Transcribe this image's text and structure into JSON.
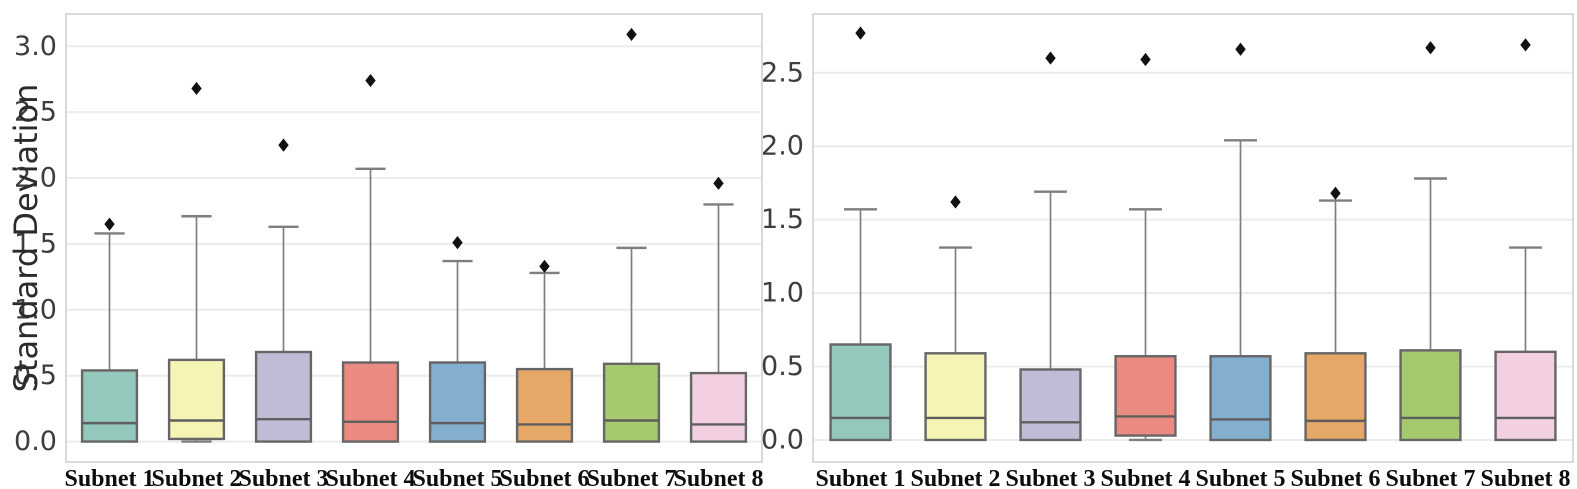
{
  "figure": {
    "background": "#ffffff",
    "grid_color": "#ececec",
    "spine_color": "#d6d6d6",
    "box_edge_color": "#666666",
    "median_color": "#5f5f5f",
    "whisker_color": "#7e7e7e",
    "outlier_color": "#111111",
    "tick_label_color": "#3d3d3d",
    "axis_label_color": "#2b2b2b",
    "palette": [
      "#94c8bc",
      "#f6f4b5",
      "#bfbcd6",
      "#e98b80",
      "#84aecd",
      "#e5a866",
      "#a5ca6e",
      "#f3cfe2"
    ]
  },
  "chart_data": [
    {
      "type": "box",
      "title": "",
      "xlabel": "",
      "ylabel": "Standard Deviation",
      "grid": true,
      "legend": "none",
      "ylim": [
        -0.155,
        3.245
      ],
      "yticks": [
        0.0,
        0.5,
        1.0,
        1.5,
        2.0,
        2.5,
        3.0
      ],
      "yticklabels": [
        "0.0",
        "0.5",
        "1.0",
        "1.5",
        "2.0",
        "2.5",
        "3.0"
      ],
      "categories": [
        "Subnet 1",
        "Subnet 2",
        "Subnet 3",
        "Subnet 4",
        "Subnet 5",
        "Subnet 6",
        "Subnet 7",
        "Subnet 8"
      ],
      "boxes": [
        {
          "label": "Subnet 1",
          "color": "#94c8bc",
          "q1": 0.0,
          "median": 0.14,
          "q3": 0.54,
          "whisker_low": 0.0,
          "whisker_high": 1.58,
          "outliers": [
            1.65
          ]
        },
        {
          "label": "Subnet 2",
          "color": "#f6f4b5",
          "q1": 0.02,
          "median": 0.16,
          "q3": 0.62,
          "whisker_low": 0.0,
          "whisker_high": 1.71,
          "outliers": [
            2.68
          ]
        },
        {
          "label": "Subnet 3",
          "color": "#bfbcd6",
          "q1": 0.0,
          "median": 0.17,
          "q3": 0.68,
          "whisker_low": 0.0,
          "whisker_high": 1.63,
          "outliers": [
            2.25
          ]
        },
        {
          "label": "Subnet 4",
          "color": "#e98b80",
          "q1": 0.0,
          "median": 0.15,
          "q3": 0.6,
          "whisker_low": 0.0,
          "whisker_high": 2.07,
          "outliers": [
            2.74
          ]
        },
        {
          "label": "Subnet 5",
          "color": "#84aecd",
          "q1": 0.0,
          "median": 0.14,
          "q3": 0.6,
          "whisker_low": 0.0,
          "whisker_high": 1.37,
          "outliers": [
            1.51
          ]
        },
        {
          "label": "Subnet 6",
          "color": "#e5a866",
          "q1": 0.0,
          "median": 0.13,
          "q3": 0.55,
          "whisker_low": 0.0,
          "whisker_high": 1.28,
          "outliers": [
            1.33
          ]
        },
        {
          "label": "Subnet 7",
          "color": "#a5ca6e",
          "q1": 0.0,
          "median": 0.16,
          "q3": 0.59,
          "whisker_low": 0.0,
          "whisker_high": 1.47,
          "outliers": [
            3.09
          ]
        },
        {
          "label": "Subnet 8",
          "color": "#f3cfe2",
          "q1": 0.0,
          "median": 0.13,
          "q3": 0.52,
          "whisker_low": 0.0,
          "whisker_high": 1.8,
          "outliers": [
            1.96
          ]
        }
      ]
    },
    {
      "type": "box",
      "title": "",
      "xlabel": "",
      "ylabel": "",
      "grid": true,
      "legend": "none",
      "ylim": [
        -0.15,
        2.9
      ],
      "yticks": [
        0.0,
        0.5,
        1.0,
        1.5,
        2.0,
        2.5
      ],
      "yticklabels": [
        "0.0",
        "0.5",
        "1.0",
        "1.5",
        "2.0",
        "2.5"
      ],
      "categories": [
        "Subnet 1",
        "Subnet 2",
        "Subnet 3",
        "Subnet 4",
        "Subnet 5",
        "Subnet 6",
        "Subnet 7",
        "Subnet 8"
      ],
      "boxes": [
        {
          "label": "Subnet 1",
          "color": "#94c8bc",
          "q1": 0.0,
          "median": 0.15,
          "q3": 0.65,
          "whisker_low": 0.0,
          "whisker_high": 1.57,
          "outliers": [
            2.77
          ]
        },
        {
          "label": "Subnet 2",
          "color": "#f6f4b5",
          "q1": 0.0,
          "median": 0.15,
          "q3": 0.59,
          "whisker_low": 0.0,
          "whisker_high": 1.31,
          "outliers": [
            1.62
          ]
        },
        {
          "label": "Subnet 3",
          "color": "#bfbcd6",
          "q1": 0.0,
          "median": 0.12,
          "q3": 0.48,
          "whisker_low": 0.0,
          "whisker_high": 1.69,
          "outliers": [
            2.6
          ]
        },
        {
          "label": "Subnet 4",
          "color": "#e98b80",
          "q1": 0.03,
          "median": 0.16,
          "q3": 0.57,
          "whisker_low": 0.0,
          "whisker_high": 1.57,
          "outliers": [
            2.59
          ]
        },
        {
          "label": "Subnet 5",
          "color": "#84aecd",
          "q1": 0.0,
          "median": 0.14,
          "q3": 0.57,
          "whisker_low": 0.0,
          "whisker_high": 2.04,
          "outliers": [
            2.66
          ]
        },
        {
          "label": "Subnet 6",
          "color": "#e5a866",
          "q1": 0.0,
          "median": 0.13,
          "q3": 0.59,
          "whisker_low": 0.0,
          "whisker_high": 1.63,
          "outliers": [
            1.68
          ]
        },
        {
          "label": "Subnet 7",
          "color": "#a5ca6e",
          "q1": 0.0,
          "median": 0.15,
          "q3": 0.61,
          "whisker_low": 0.0,
          "whisker_high": 1.78,
          "outliers": [
            2.67
          ]
        },
        {
          "label": "Subnet 8",
          "color": "#f3cfe2",
          "q1": 0.0,
          "median": 0.15,
          "q3": 0.6,
          "whisker_low": 0.0,
          "whisker_high": 1.31,
          "outliers": [
            2.69
          ]
        }
      ]
    }
  ]
}
